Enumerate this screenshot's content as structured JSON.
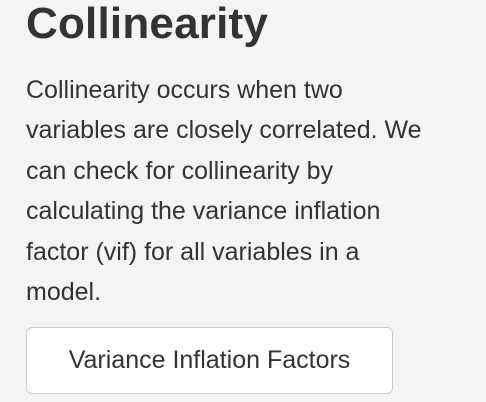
{
  "section": {
    "title": "Collinearity",
    "description_lines": [
      "Collinearity occurs when two",
      "variables are closely correlated. We",
      "can check for collinearity by",
      "calculating the variance inflation",
      "factor (vif) for all variables in a",
      "model."
    ],
    "button_label": "Variance Inflation Factors"
  },
  "colors": {
    "background": "#f4f4f4",
    "text": "#333333",
    "button_background": "#ffffff",
    "button_border": "#cccccc"
  }
}
